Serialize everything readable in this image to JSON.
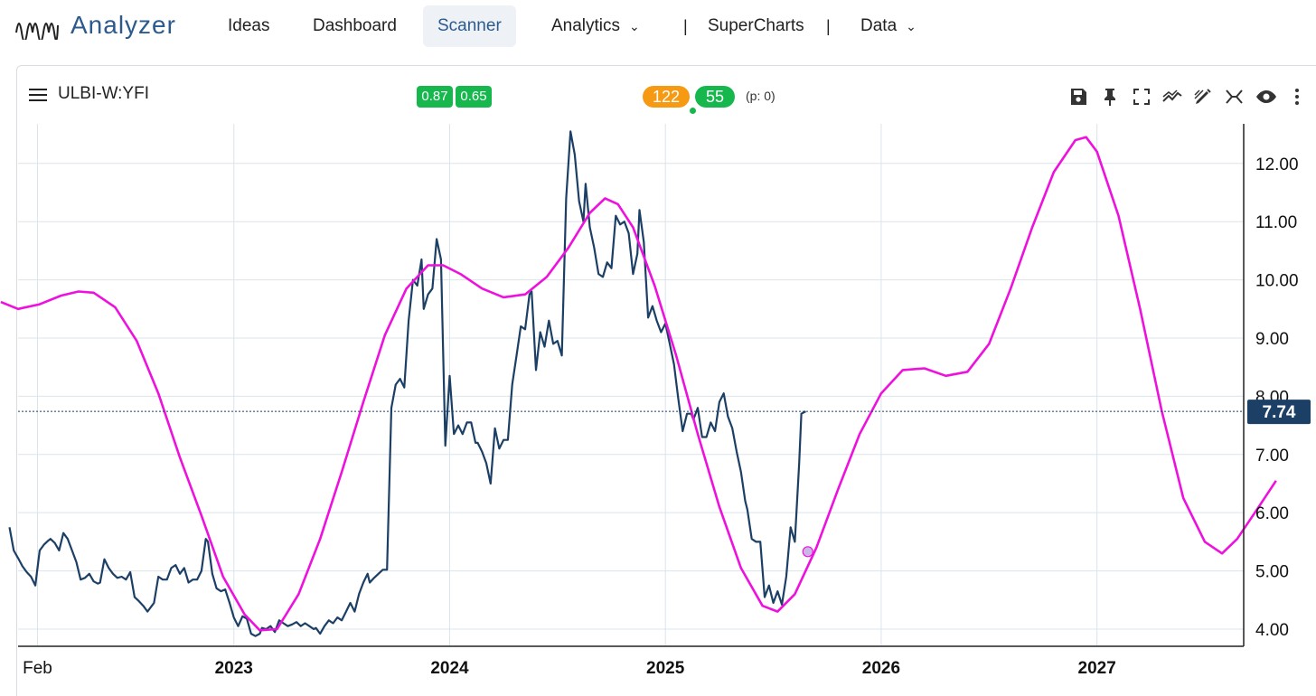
{
  "app": {
    "title": "Analyzer"
  },
  "nav": {
    "items": [
      {
        "label": "Ideas"
      },
      {
        "label": "Dashboard"
      },
      {
        "label": "Scanner"
      },
      {
        "label": "Analytics"
      },
      {
        "label": "SuperCharts"
      },
      {
        "label": "Data"
      }
    ],
    "separator": "|"
  },
  "toolbar": {
    "symbol": "ULBI-W:YFI",
    "badge_a": "0.87",
    "badge_b": "0.65",
    "count_a": "122",
    "count_b": "55",
    "p_text": "(p: 0)"
  },
  "colors": {
    "price": "#1c3f66",
    "cycle": "#ee11dd",
    "price_label_bg": "#1c3f66",
    "accent": "#2c5a8c"
  },
  "chart_data": {
    "type": "line",
    "title": "ULBI-W:YFI",
    "x_axis": {
      "range": [
        2022.0,
        2027.68
      ],
      "ticks": [
        {
          "label": "Feb",
          "x": 2022.09,
          "bold": false
        },
        {
          "label": "2023",
          "x": 2023.0,
          "bold": true
        },
        {
          "label": "2024",
          "x": 2024.0,
          "bold": true
        },
        {
          "label": "2025",
          "x": 2025.0,
          "bold": true
        },
        {
          "label": "2026",
          "x": 2026.0,
          "bold": true
        },
        {
          "label": "2027",
          "x": 2027.0,
          "bold": true
        }
      ]
    },
    "y_axis": {
      "range": [
        3.72,
        12.68
      ],
      "ticks": [
        4.0,
        5.0,
        6.0,
        7.0,
        8.0,
        9.0,
        10.0,
        11.0,
        12.0
      ],
      "position": "right"
    },
    "last_price": 7.74,
    "last_price_label": "7.74",
    "series": [
      {
        "name": "Price",
        "values": [
          [
            2021.96,
            5.75
          ],
          [
            2021.98,
            5.35
          ],
          [
            2022.0,
            5.22
          ],
          [
            2022.02,
            5.08
          ],
          [
            2022.04,
            4.98
          ],
          [
            2022.06,
            4.9
          ],
          [
            2022.08,
            4.75
          ],
          [
            2022.1,
            5.35
          ],
          [
            2022.12,
            5.45
          ],
          [
            2022.14,
            5.52
          ],
          [
            2022.15,
            5.55
          ],
          [
            2022.17,
            5.48
          ],
          [
            2022.19,
            5.35
          ],
          [
            2022.21,
            5.65
          ],
          [
            2022.23,
            5.55
          ],
          [
            2022.25,
            5.35
          ],
          [
            2022.27,
            5.15
          ],
          [
            2022.29,
            4.85
          ],
          [
            2022.31,
            4.88
          ],
          [
            2022.33,
            4.95
          ],
          [
            2022.35,
            4.82
          ],
          [
            2022.37,
            4.78
          ],
          [
            2022.38,
            4.8
          ],
          [
            2022.4,
            5.2
          ],
          [
            2022.42,
            5.05
          ],
          [
            2022.44,
            4.95
          ],
          [
            2022.46,
            4.88
          ],
          [
            2022.48,
            4.9
          ],
          [
            2022.5,
            4.85
          ],
          [
            2022.52,
            4.98
          ],
          [
            2022.54,
            4.55
          ],
          [
            2022.56,
            4.48
          ],
          [
            2022.58,
            4.4
          ],
          [
            2022.6,
            4.3
          ],
          [
            2022.62,
            4.4
          ],
          [
            2022.63,
            4.45
          ],
          [
            2022.65,
            4.9
          ],
          [
            2022.67,
            4.85
          ],
          [
            2022.69,
            4.85
          ],
          [
            2022.71,
            5.05
          ],
          [
            2022.73,
            5.1
          ],
          [
            2022.75,
            4.95
          ],
          [
            2022.77,
            5.05
          ],
          [
            2022.79,
            4.8
          ],
          [
            2022.81,
            4.85
          ],
          [
            2022.83,
            4.85
          ],
          [
            2022.85,
            5.0
          ],
          [
            2022.87,
            5.55
          ],
          [
            2022.88,
            5.5
          ],
          [
            2022.9,
            4.95
          ],
          [
            2022.92,
            4.7
          ],
          [
            2022.94,
            4.65
          ],
          [
            2022.96,
            4.68
          ],
          [
            2022.98,
            4.45
          ],
          [
            2023.0,
            4.2
          ],
          [
            2023.02,
            4.05
          ],
          [
            2023.04,
            4.22
          ],
          [
            2023.06,
            4.18
          ],
          [
            2023.08,
            3.92
          ],
          [
            2023.1,
            3.88
          ],
          [
            2023.12,
            3.92
          ],
          [
            2023.13,
            4.02
          ],
          [
            2023.15,
            4.0
          ],
          [
            2023.17,
            4.05
          ],
          [
            2023.19,
            3.95
          ],
          [
            2023.21,
            4.15
          ],
          [
            2023.23,
            4.1
          ],
          [
            2023.25,
            4.05
          ],
          [
            2023.27,
            4.08
          ],
          [
            2023.29,
            4.12
          ],
          [
            2023.31,
            4.05
          ],
          [
            2023.33,
            4.1
          ],
          [
            2023.35,
            4.05
          ],
          [
            2023.37,
            4.0
          ],
          [
            2023.38,
            4.02
          ],
          [
            2023.4,
            3.92
          ],
          [
            2023.42,
            4.05
          ],
          [
            2023.44,
            4.15
          ],
          [
            2023.46,
            4.1
          ],
          [
            2023.48,
            4.2
          ],
          [
            2023.5,
            4.15
          ],
          [
            2023.52,
            4.3
          ],
          [
            2023.54,
            4.45
          ],
          [
            2023.56,
            4.3
          ],
          [
            2023.58,
            4.6
          ],
          [
            2023.6,
            4.8
          ],
          [
            2023.62,
            4.95
          ],
          [
            2023.63,
            4.8
          ],
          [
            2023.65,
            4.88
          ],
          [
            2023.67,
            4.95
          ],
          [
            2023.69,
            5.02
          ],
          [
            2023.71,
            5.02
          ],
          [
            2023.73,
            7.8
          ],
          [
            2023.75,
            8.2
          ],
          [
            2023.77,
            8.3
          ],
          [
            2023.79,
            8.15
          ],
          [
            2023.81,
            9.3
          ],
          [
            2023.83,
            10.0
          ],
          [
            2023.85,
            9.9
          ],
          [
            2023.87,
            10.35
          ],
          [
            2023.88,
            9.5
          ],
          [
            2023.9,
            9.75
          ],
          [
            2023.92,
            9.85
          ],
          [
            2023.94,
            10.7
          ],
          [
            2023.96,
            10.35
          ],
          [
            2023.98,
            7.15
          ],
          [
            2024.0,
            8.35
          ],
          [
            2024.02,
            7.35
          ],
          [
            2024.04,
            7.5
          ],
          [
            2024.06,
            7.35
          ],
          [
            2024.08,
            7.55
          ],
          [
            2024.1,
            7.55
          ],
          [
            2024.12,
            7.2
          ],
          [
            2024.13,
            7.2
          ],
          [
            2024.15,
            7.05
          ],
          [
            2024.17,
            6.85
          ],
          [
            2024.19,
            6.5
          ],
          [
            2024.21,
            7.45
          ],
          [
            2024.23,
            7.1
          ],
          [
            2024.25,
            7.25
          ],
          [
            2024.27,
            7.25
          ],
          [
            2024.29,
            8.2
          ],
          [
            2024.31,
            8.7
          ],
          [
            2024.33,
            9.2
          ],
          [
            2024.35,
            9.15
          ],
          [
            2024.37,
            9.75
          ],
          [
            2024.38,
            9.8
          ],
          [
            2024.4,
            8.45
          ],
          [
            2024.42,
            9.1
          ],
          [
            2024.44,
            8.85
          ],
          [
            2024.46,
            9.3
          ],
          [
            2024.48,
            8.9
          ],
          [
            2024.5,
            8.95
          ],
          [
            2024.52,
            8.7
          ],
          [
            2024.54,
            11.4
          ],
          [
            2024.56,
            12.55
          ],
          [
            2024.58,
            12.15
          ],
          [
            2024.6,
            11.35
          ],
          [
            2024.62,
            11.0
          ],
          [
            2024.63,
            11.65
          ],
          [
            2024.65,
            10.9
          ],
          [
            2024.67,
            10.55
          ],
          [
            2024.69,
            10.1
          ],
          [
            2024.71,
            10.05
          ],
          [
            2024.73,
            10.3
          ],
          [
            2024.75,
            10.2
          ],
          [
            2024.77,
            11.1
          ],
          [
            2024.79,
            10.95
          ],
          [
            2024.81,
            11.0
          ],
          [
            2024.83,
            10.8
          ],
          [
            2024.85,
            10.1
          ],
          [
            2024.87,
            10.45
          ],
          [
            2024.88,
            11.2
          ],
          [
            2024.9,
            10.65
          ],
          [
            2024.92,
            9.35
          ],
          [
            2024.94,
            9.55
          ],
          [
            2024.96,
            9.3
          ],
          [
            2024.98,
            9.1
          ],
          [
            2025.0,
            9.25
          ],
          [
            2025.02,
            8.9
          ],
          [
            2025.04,
            8.55
          ],
          [
            2025.06,
            7.95
          ],
          [
            2025.08,
            7.4
          ],
          [
            2025.1,
            7.7
          ],
          [
            2025.12,
            7.7
          ],
          [
            2025.13,
            7.6
          ],
          [
            2025.15,
            7.8
          ],
          [
            2025.17,
            7.3
          ],
          [
            2025.19,
            7.3
          ],
          [
            2025.21,
            7.55
          ],
          [
            2025.23,
            7.4
          ],
          [
            2025.25,
            7.9
          ],
          [
            2025.27,
            8.05
          ],
          [
            2025.29,
            7.65
          ],
          [
            2025.31,
            7.45
          ],
          [
            2025.33,
            7.05
          ],
          [
            2025.35,
            6.7
          ],
          [
            2025.37,
            6.2
          ],
          [
            2025.38,
            6.05
          ],
          [
            2025.4,
            5.55
          ],
          [
            2025.42,
            5.5
          ],
          [
            2025.44,
            5.5
          ],
          [
            2025.46,
            4.55
          ],
          [
            2025.48,
            4.75
          ],
          [
            2025.5,
            4.45
          ],
          [
            2025.52,
            4.65
          ],
          [
            2025.54,
            4.42
          ],
          [
            2025.56,
            4.9
          ],
          [
            2025.58,
            5.75
          ],
          [
            2025.6,
            5.5
          ],
          [
            2025.62,
            6.85
          ],
          [
            2025.63,
            7.7
          ],
          [
            2025.65,
            7.74
          ]
        ]
      },
      {
        "name": "Cycle",
        "values": [
          [
            2021.92,
            9.62
          ],
          [
            2022.0,
            9.5
          ],
          [
            2022.1,
            9.58
          ],
          [
            2022.2,
            9.73
          ],
          [
            2022.28,
            9.8
          ],
          [
            2022.35,
            9.78
          ],
          [
            2022.45,
            9.53
          ],
          [
            2022.55,
            8.95
          ],
          [
            2022.65,
            8.05
          ],
          [
            2022.75,
            6.95
          ],
          [
            2022.85,
            5.95
          ],
          [
            2022.95,
            4.9
          ],
          [
            2023.05,
            4.25
          ],
          [
            2023.12,
            3.98
          ],
          [
            2023.2,
            4.0
          ],
          [
            2023.3,
            4.6
          ],
          [
            2023.4,
            5.55
          ],
          [
            2023.5,
            6.7
          ],
          [
            2023.6,
            7.9
          ],
          [
            2023.7,
            9.05
          ],
          [
            2023.8,
            9.85
          ],
          [
            2023.9,
            10.25
          ],
          [
            2023.97,
            10.25
          ],
          [
            2024.05,
            10.1
          ],
          [
            2024.15,
            9.85
          ],
          [
            2024.25,
            9.7
          ],
          [
            2024.35,
            9.75
          ],
          [
            2024.45,
            10.05
          ],
          [
            2024.55,
            10.55
          ],
          [
            2024.65,
            11.15
          ],
          [
            2024.72,
            11.4
          ],
          [
            2024.78,
            11.3
          ],
          [
            2024.85,
            10.9
          ],
          [
            2024.95,
            9.9
          ],
          [
            2025.05,
            8.7
          ],
          [
            2025.15,
            7.35
          ],
          [
            2025.25,
            6.1
          ],
          [
            2025.35,
            5.05
          ],
          [
            2025.45,
            4.4
          ],
          [
            2025.52,
            4.3
          ],
          [
            2025.6,
            4.6
          ],
          [
            2025.7,
            5.4
          ],
          [
            2025.8,
            6.4
          ],
          [
            2025.9,
            7.35
          ],
          [
            2026.0,
            8.05
          ],
          [
            2026.1,
            8.45
          ],
          [
            2026.2,
            8.48
          ],
          [
            2026.3,
            8.35
          ],
          [
            2026.4,
            8.42
          ],
          [
            2026.5,
            8.9
          ],
          [
            2026.6,
            9.85
          ],
          [
            2026.7,
            10.9
          ],
          [
            2026.8,
            11.85
          ],
          [
            2026.9,
            12.4
          ],
          [
            2026.95,
            12.45
          ],
          [
            2027.0,
            12.2
          ],
          [
            2027.1,
            11.1
          ],
          [
            2027.2,
            9.5
          ],
          [
            2027.3,
            7.75
          ],
          [
            2027.4,
            6.25
          ],
          [
            2027.5,
            5.5
          ],
          [
            2027.58,
            5.3
          ],
          [
            2027.65,
            5.55
          ],
          [
            2027.75,
            6.1
          ],
          [
            2027.83,
            6.55
          ]
        ]
      }
    ],
    "marker": {
      "x": 2025.66,
      "y": 5.33
    }
  }
}
